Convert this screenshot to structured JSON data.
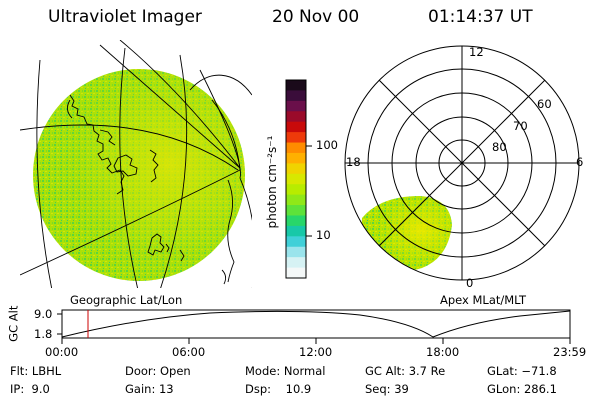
{
  "header": {
    "instrument": "Ultraviolet Imager",
    "date": "20 Nov 00",
    "time": "01:14:37 UT"
  },
  "colorbar": {
    "unit_label": "photon cm⁻²s⁻¹",
    "tick_labels": [
      "100",
      "10"
    ],
    "colors": [
      "#1a0a1a",
      "#3a0d3a",
      "#6a0f4a",
      "#9a0a2a",
      "#c80a0a",
      "#ee3a0a",
      "#ff8c00",
      "#ffb000",
      "#f0d400",
      "#d8e800",
      "#b8ec00",
      "#90e818",
      "#5ee23a",
      "#28d66a",
      "#18c8a8",
      "#40d0d8",
      "#9ae4ec",
      "#d6f2f4",
      "#f4f8f8"
    ]
  },
  "polar": {
    "mlt_labels": {
      "top": "12",
      "left": "18",
      "right": "6",
      "bottom": "0"
    },
    "lat_labels": [
      "60",
      "70",
      "80"
    ],
    "label": "Apex MLat/MLT"
  },
  "geo": {
    "label": "Geographic Lat/Lon"
  },
  "altitude_plot": {
    "axis_label": "GC Alt",
    "y_ticks": [
      "9.0",
      "1.8"
    ],
    "x_ticks": [
      "00:00",
      "06:00",
      "12:00",
      "18:00",
      "23:59"
    ],
    "current_time_marker": "01:14:37"
  },
  "info": {
    "flt": "Flt: LBHL",
    "ip": "IP:  9.0",
    "door": "Door: Open",
    "gain": "Gain: 13",
    "mode": "Mode: Normal",
    "dsp": "Dsp:    10.9",
    "gcalt": "GC Alt: 3.7 Re",
    "seq": "Seq: 39",
    "glat": "GLat: −71.8",
    "glon": "GLon: 286.1"
  }
}
